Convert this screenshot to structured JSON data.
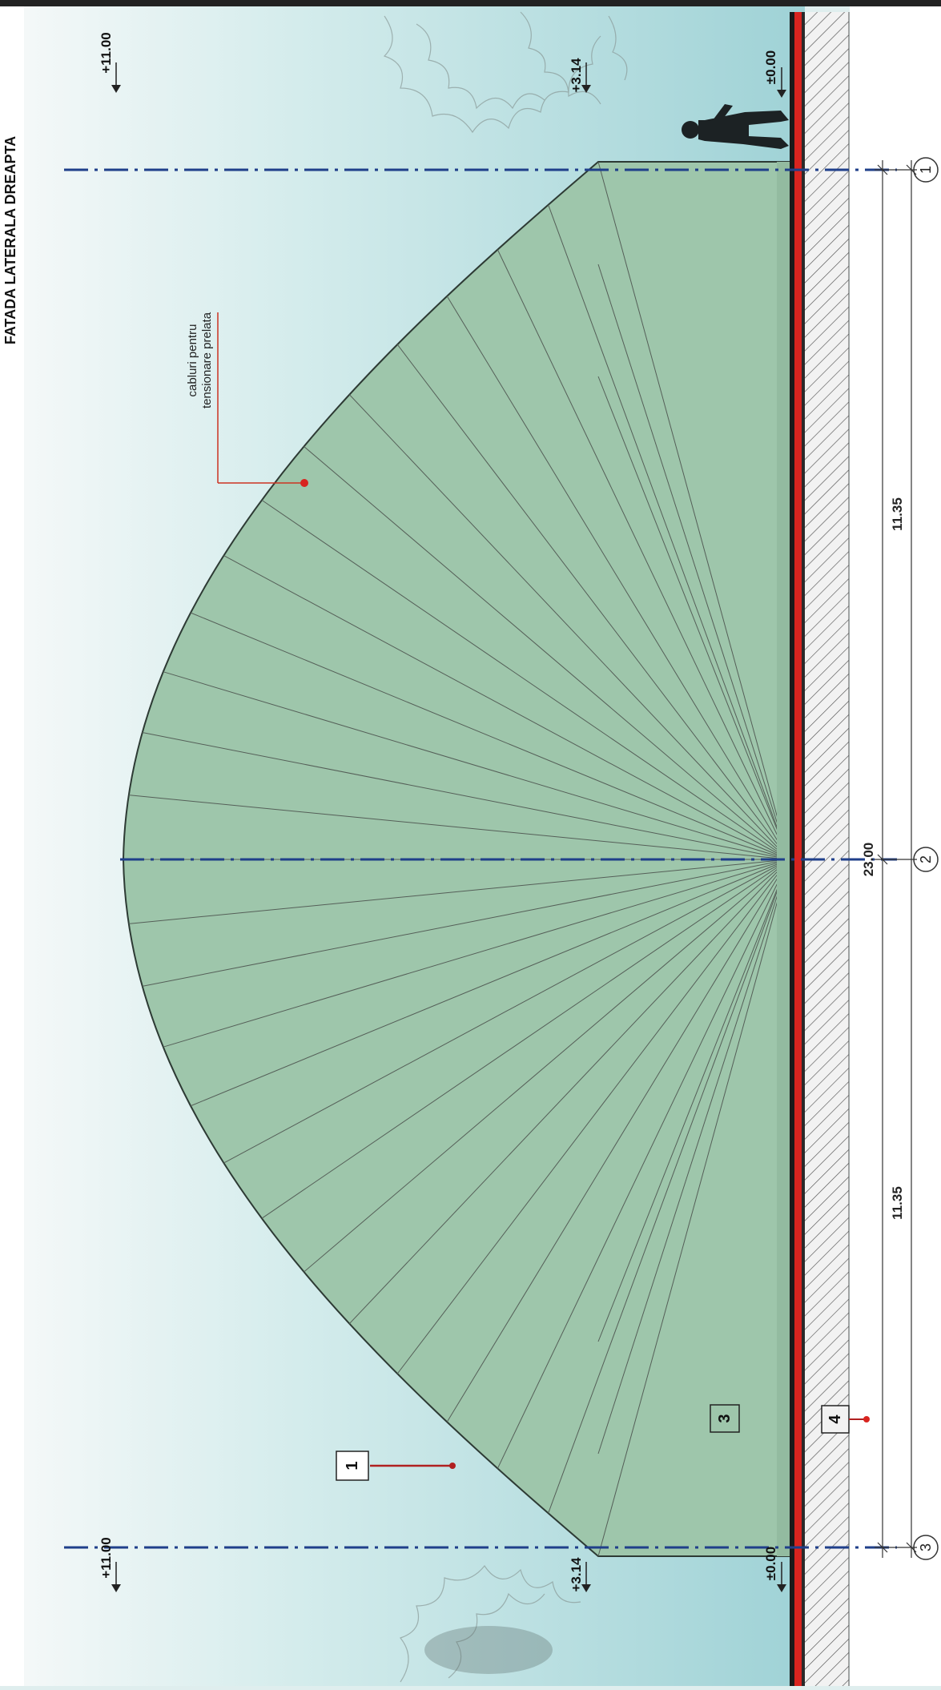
{
  "drawing": {
    "title": "FATADA LATERALA  DREAPTA",
    "annotation_line1": "cabluri pentru",
    "annotation_line2": "tensionare prelata"
  },
  "levels": {
    "top": "+11.00",
    "eave": "+3.14",
    "ground": "±0.00"
  },
  "dimensions": {
    "total": "23.00",
    "left_span": "11.35",
    "right_span": "11.35"
  },
  "axes": {
    "axis1": "1",
    "axis2": "2",
    "axis3": "3"
  },
  "tags": {
    "tag1": "1",
    "tag3": "3",
    "tag4": "4"
  },
  "colors": {
    "sky": "#cfe8ea",
    "membrane": "#9fc7ad",
    "ground_line": "#d8241f",
    "axis_line": "#1f3f8a"
  }
}
